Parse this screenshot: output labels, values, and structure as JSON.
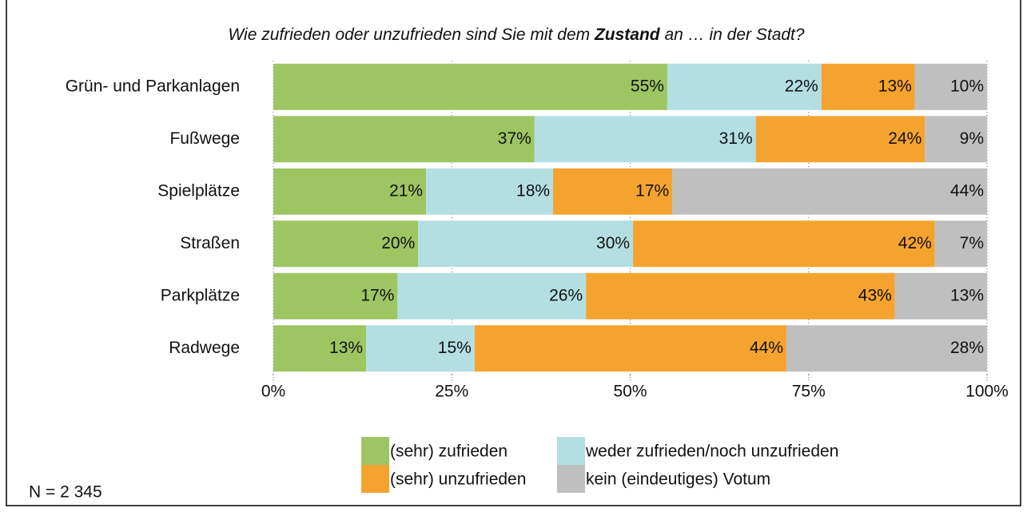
{
  "chart_data": {
    "type": "stacked-bar-horizontal",
    "title": [
      "Wie zufrieden oder unzufrieden sind Sie mit dem ",
      "Zustand",
      " an … in der Stadt?"
    ],
    "categories": [
      "Grün- und Parkanlagen",
      "Fußwege",
      "Spielplätze",
      "Straßen",
      "Parkplätze",
      "Radwege"
    ],
    "series": [
      {
        "name": "(sehr) zufrieden",
        "color": "#9dc663",
        "values": [
          55.2,
          36.6,
          21.4,
          20.3,
          17.4,
          13.0
        ],
        "value_labels": [
          "55%",
          "37%",
          "21%",
          "20%",
          "17%",
          "13%"
        ]
      },
      {
        "name": "weder zufrieden/noch unzufrieden",
        "color": "#b3dfe3",
        "values": [
          21.6,
          31.0,
          17.8,
          30.1,
          26.4,
          15.2
        ],
        "value_labels": [
          "22%",
          "31%",
          "18%",
          "30%",
          "26%",
          "15%"
        ]
      },
      {
        "name": "(sehr) unzufrieden",
        "color": "#f5a32f",
        "values": [
          13.1,
          23.7,
          16.7,
          42.3,
          43.3,
          43.7
        ],
        "value_labels": [
          "13%",
          "24%",
          "17%",
          "42%",
          "43%",
          "44%"
        ]
      },
      {
        "name": "kein (eindeutiges) Votum",
        "color": "#bfbfbf",
        "values": [
          10.1,
          8.7,
          44.1,
          7.3,
          12.9,
          28.1
        ],
        "value_labels": [
          "10%",
          "9%",
          "44%",
          "7%",
          "13%",
          "28%"
        ]
      }
    ],
    "xlim": [
      0,
      100
    ],
    "xticks": [
      {
        "value": 0,
        "label": "0%"
      },
      {
        "value": 25,
        "label": "25%"
      },
      {
        "value": 50,
        "label": "50%"
      },
      {
        "value": 75,
        "label": "75%"
      },
      {
        "value": 100,
        "label": "100%"
      }
    ],
    "grid": true,
    "note": "N = 2 345"
  }
}
